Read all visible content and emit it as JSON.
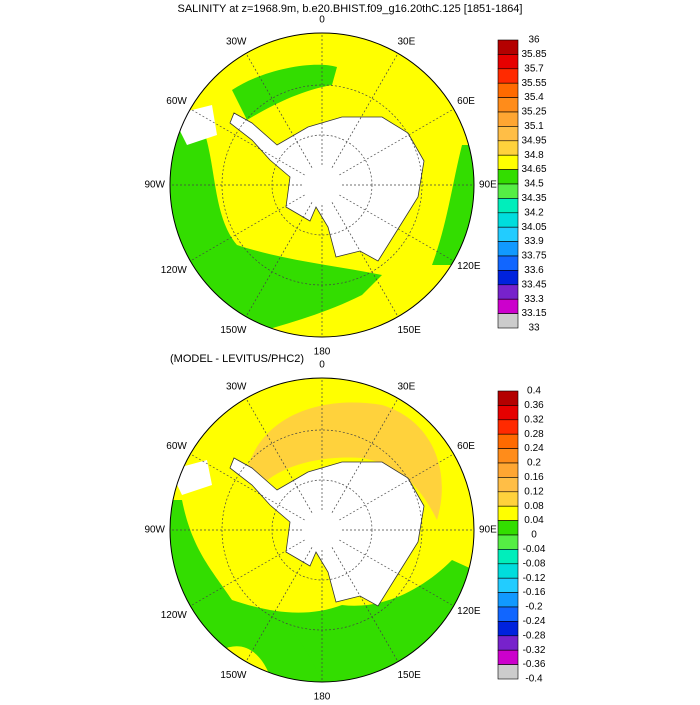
{
  "palette": [
    "#b40000",
    "#e60000",
    "#ff2a00",
    "#ff6a00",
    "#ff8c1a",
    "#ffa632",
    "#ffbe46",
    "#ffd23c",
    "#ffff00",
    "#33dd00",
    "#55ee44",
    "#00eebb",
    "#00dddd",
    "#22ccff",
    "#1199ff",
    "#1166ff",
    "#0022dd",
    "#7722cc",
    "#cc00cc",
    "#cccccc",
    "#777777"
  ],
  "panels": [
    {
      "title": "SALINITY at z=1968.9m, b.e20.BHIST.f09_g16.20thC.125 [1851-1864]",
      "longitude_labels": [
        "0",
        "30E",
        "60E",
        "90E",
        "120E",
        "150E",
        "180",
        "150W",
        "120W",
        "90W",
        "60W",
        "30W"
      ],
      "colorbar_labels": [
        "36",
        "35.85",
        "35.7",
        "35.55",
        "35.4",
        "35.25",
        "35.1",
        "34.95",
        "34.8",
        "34.65",
        "34.5",
        "34.35",
        "34.2",
        "34.05",
        "33.9",
        "33.75",
        "33.6",
        "33.45",
        "33.3",
        "33.15",
        "33"
      ]
    },
    {
      "title": "(MODEL - LEVITUS/PHC2)",
      "longitude_labels": [
        "0",
        "30E",
        "60E",
        "90E",
        "120E",
        "150E",
        "180",
        "150W",
        "120W",
        "90W",
        "60W",
        "30W"
      ],
      "colorbar_labels": [
        "0.4",
        "0.36",
        "0.32",
        "0.28",
        "0.24",
        "0.2",
        "0.16",
        "0.12",
        "0.08",
        "0.04",
        "0",
        "-0.04",
        "-0.08",
        "-0.12",
        "-0.16",
        "-0.2",
        "-0.24",
        "-0.28",
        "-0.32",
        "-0.36",
        "-0.4"
      ]
    }
  ]
}
